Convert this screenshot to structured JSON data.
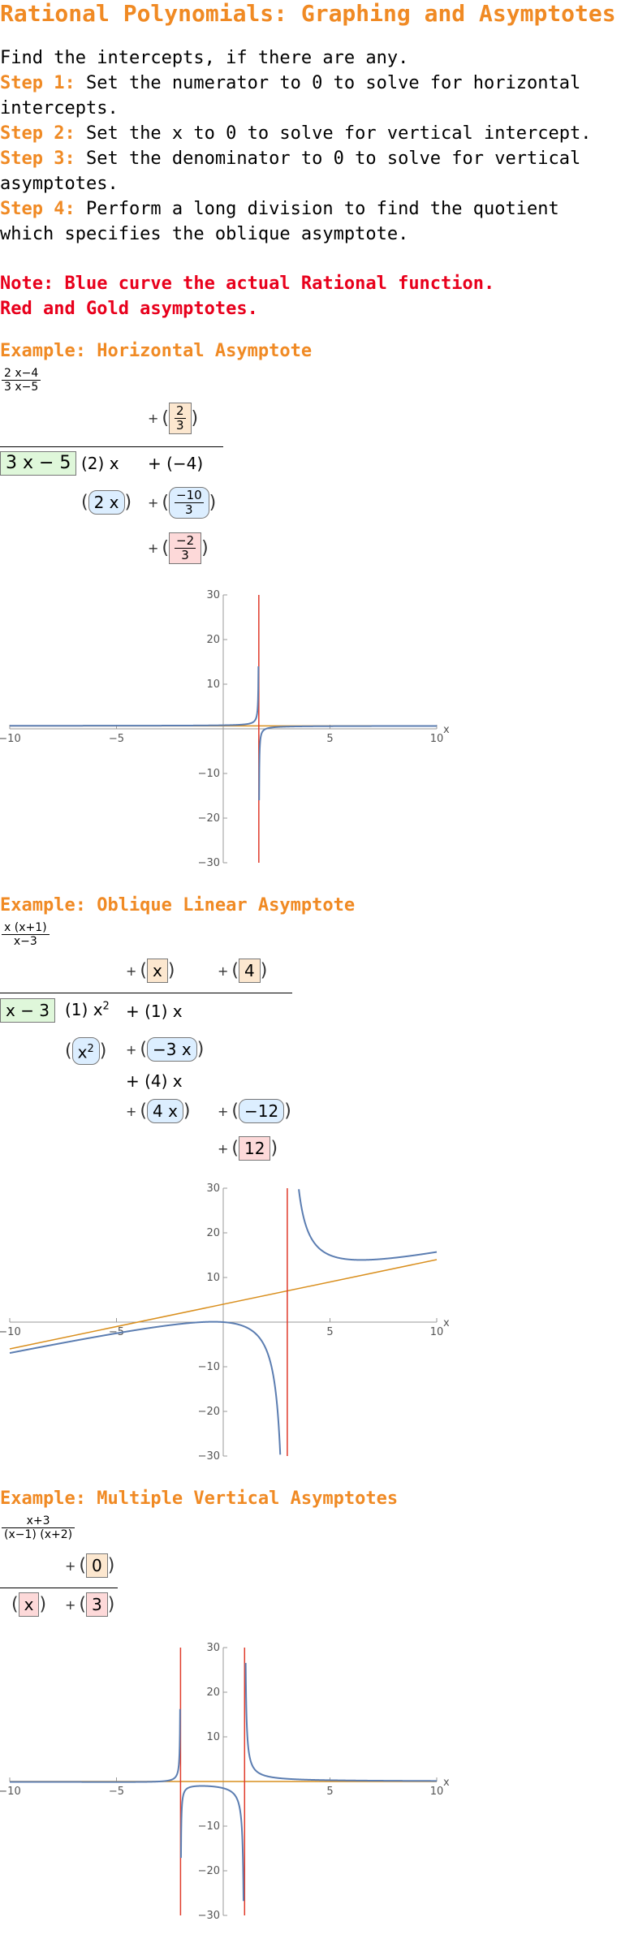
{
  "title": "Rational Polynomials: Graphing and Asymptotes",
  "intro": {
    "line0": "Find the intercepts, if there are any.",
    "steps": [
      {
        "label": "Step 1:",
        "text": " Set the numerator to 0 to solve for horizontal intercepts."
      },
      {
        "label": "Step 2:",
        "text": " Set the x to 0 to solve for vertical intercept."
      },
      {
        "label": "Step 3:",
        "text": " Set the denominator to 0 to solve for vertical asymptotes."
      },
      {
        "label": "Step 4:",
        "text": " Perform a long division to find the quotient which specifies the oblique asymptote."
      }
    ]
  },
  "note": {
    "line1": "Note: Blue curve the actual Rational function.",
    "line2": "Red and Gold asymptotes."
  },
  "colors": {
    "accent": "#F08A24",
    "note": "#E8001C",
    "curve": "#5B7DB1",
    "vertical_asymptote": "#E03A2B",
    "oblique_asymptote": "#D98F1E"
  },
  "examples": [
    {
      "heading": "Example: Horizontal Asymptote",
      "fraction": {
        "num": "2 x−4",
        "den": "3 x−5"
      },
      "division": {
        "quotient": [
          {
            "plus": "+",
            "num": "2",
            "den": "3"
          }
        ],
        "divisor": "3 x − 5",
        "dividend": [
          {
            "text": "(2) x"
          },
          {
            "text": "+ (−4)"
          }
        ],
        "subtract": [
          {
            "text": "2 x"
          },
          {
            "plus": "+",
            "num": "−10",
            "den": "3"
          }
        ],
        "remainder": {
          "plus": "+",
          "num": "−2",
          "den": "3"
        }
      },
      "plot": {
        "function": "(2x-4)/(3x-5)",
        "xlim": [
          -10,
          10
        ],
        "ylim": [
          -30,
          30
        ],
        "x_ticks": [
          "−10",
          "−5",
          "5",
          "10"
        ],
        "y_ticks": [
          "30",
          "20",
          "10",
          "−10",
          "−20",
          "−30"
        ],
        "x_axis_label": "x",
        "vertical_asymptotes": [
          1.6667
        ],
        "horizontal_asymptote": 0.6667
      }
    },
    {
      "heading": "Example: Oblique Linear Asymptote",
      "fraction": {
        "num": "x (x+1)",
        "den": "x−3"
      },
      "division": {
        "quotient": [
          {
            "plus": "+",
            "text": "x"
          },
          {
            "plus": "+",
            "text": "4"
          }
        ],
        "divisor": "x − 3",
        "dividend": [
          {
            "text": "(1) x",
            "sup": "2"
          },
          {
            "text": "+ (1) x"
          }
        ],
        "row2": [
          {
            "text": "x",
            "sup": "2"
          },
          {
            "plus": "+",
            "text": "−3 x"
          }
        ],
        "row3": {
          "text": "+ (4) x"
        },
        "row4": [
          {
            "plus": "+",
            "text": "4 x"
          },
          {
            "plus": "+",
            "text": "−12"
          }
        ],
        "remainder": {
          "plus": "+",
          "text": "12"
        }
      },
      "plot": {
        "function": "x(x+1)/(x-3)",
        "xlim": [
          -10,
          10
        ],
        "ylim": [
          -30,
          30
        ],
        "x_ticks": [
          "−10",
          "−5",
          "5",
          "10"
        ],
        "y_ticks": [
          "30",
          "20",
          "10",
          "−10",
          "−20",
          "−30"
        ],
        "x_axis_label": "x",
        "vertical_asymptotes": [
          3
        ],
        "oblique_asymptote": {
          "slope": 1,
          "intercept": 4
        }
      }
    },
    {
      "heading": "Example: Multiple Vertical Asymptotes",
      "fraction": {
        "num": "x+3",
        "den": "(x−1) (x+2)"
      },
      "division": {
        "quotient": [
          {
            "plus": "+",
            "text": "0"
          }
        ],
        "divisor_parts": [
          {
            "text": "x"
          },
          {
            "plus": "+",
            "text": "3"
          }
        ]
      },
      "plot": {
        "function": "(x+3)/((x-1)(x+2))",
        "xlim": [
          -10,
          10
        ],
        "ylim": [
          -30,
          30
        ],
        "x_ticks": [
          "−10",
          "−5",
          "5",
          "10"
        ],
        "y_ticks": [
          "30",
          "20",
          "10",
          "−10",
          "−20",
          "−30"
        ],
        "x_axis_label": "x",
        "vertical_asymptotes": [
          -2,
          1
        ],
        "horizontal_asymptote": 0
      }
    }
  ]
}
